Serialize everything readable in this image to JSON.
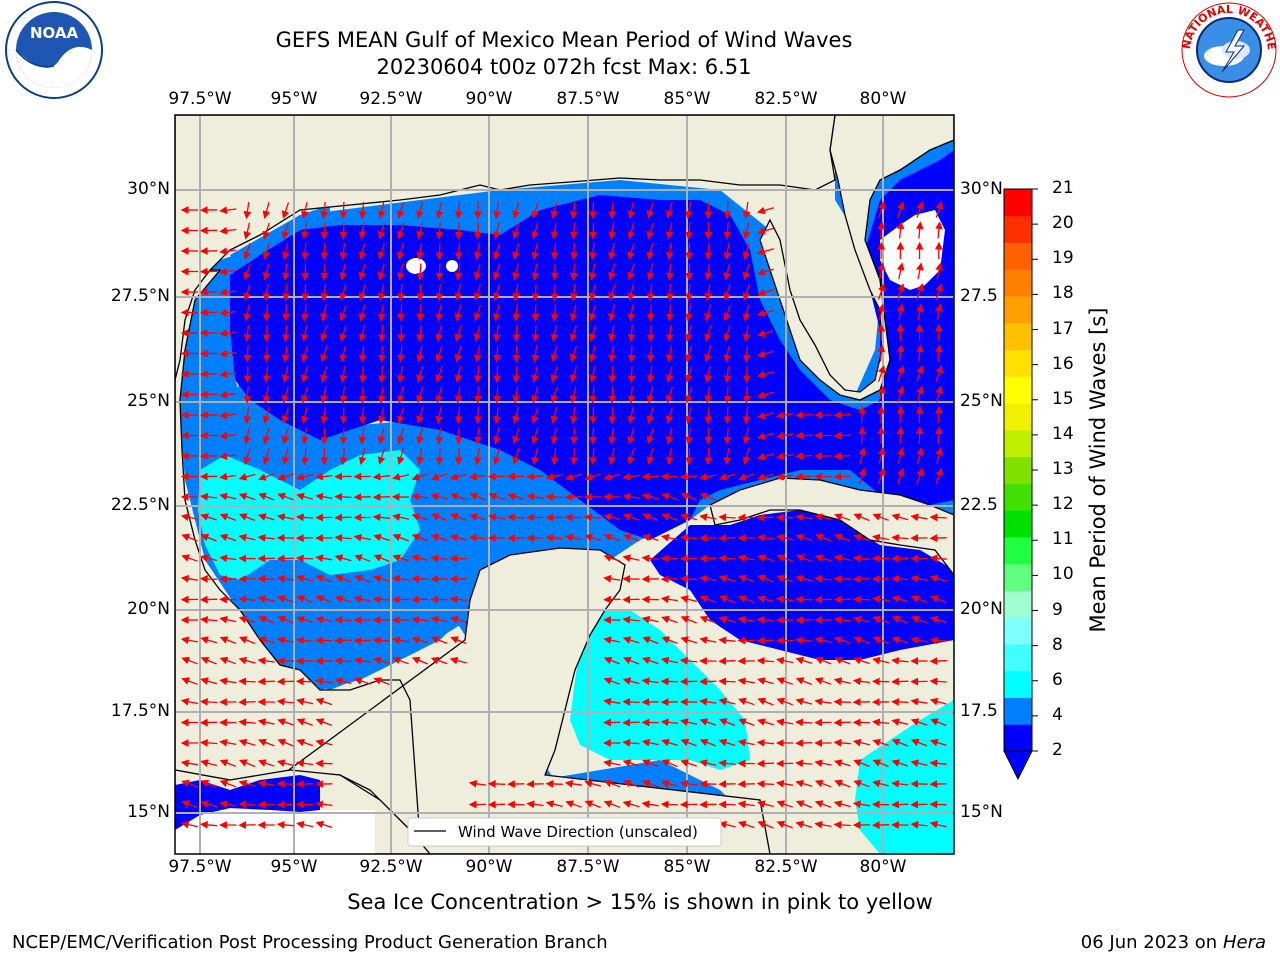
{
  "title": "GEFS MEAN Gulf of Mexico Mean Period of Wind Waves",
  "subtitle": "20230604 t00z 072h fcst   Max: 6.51",
  "lon_labels": [
    "97.5°W",
    "95°W",
    "92.5°W",
    "90°W",
    "87.5°W",
    "85°W",
    "82.5°W",
    "80°W"
  ],
  "lat_labels_left": [
    "30°N",
    "27.5°N",
    "25°N",
    "22.5°N",
    "20°N",
    "17.5°N",
    "15°N"
  ],
  "lat_labels_right": [
    "30°N",
    "27.5",
    "25°N",
    "22.5",
    "20°N",
    "17.5",
    "15°N"
  ],
  "legend_label": "Wind Wave Direction (unscaled)",
  "colorbar": {
    "title": "Mean Period of Wind Waves [s]",
    "ticks": [
      "21",
      "20",
      "19",
      "18",
      "17",
      "16",
      "15",
      "14",
      "13",
      "12",
      "11",
      "10",
      "9",
      "8",
      "6",
      "4",
      "2"
    ],
    "colors": [
      "#0000ff",
      "#0080ff",
      "#00ffff",
      "#40ffff",
      "#80ffff",
      "#a0ffd0",
      "#60ff80",
      "#20ff40",
      "#00e000",
      "#40e000",
      "#80e000",
      "#c0f000",
      "#f0f000",
      "#ffff00",
      "#ffe000",
      "#ffc000",
      "#ffa000",
      "#ff8000",
      "#ff6000",
      "#ff3000",
      "#ff0000"
    ]
  },
  "ice_note": "Sea Ice Concentration > 15% is shown in pink to yellow",
  "footer_left": "NCEP/EMC/Verification Post Processing Product Generation Branch",
  "footer_date": "06 Jun 2023 on",
  "footer_machine": "Hera",
  "logos": {
    "noaa_text": "NOAA",
    "nws_ring_text": "NATIONAL WEATHER SERVICE"
  },
  "colors": {
    "land": "#efeddc",
    "deep_blue": "#0000ff",
    "mid_blue": "#0080ff",
    "cyan": "#00ffff",
    "arrow": "#ff0000"
  }
}
